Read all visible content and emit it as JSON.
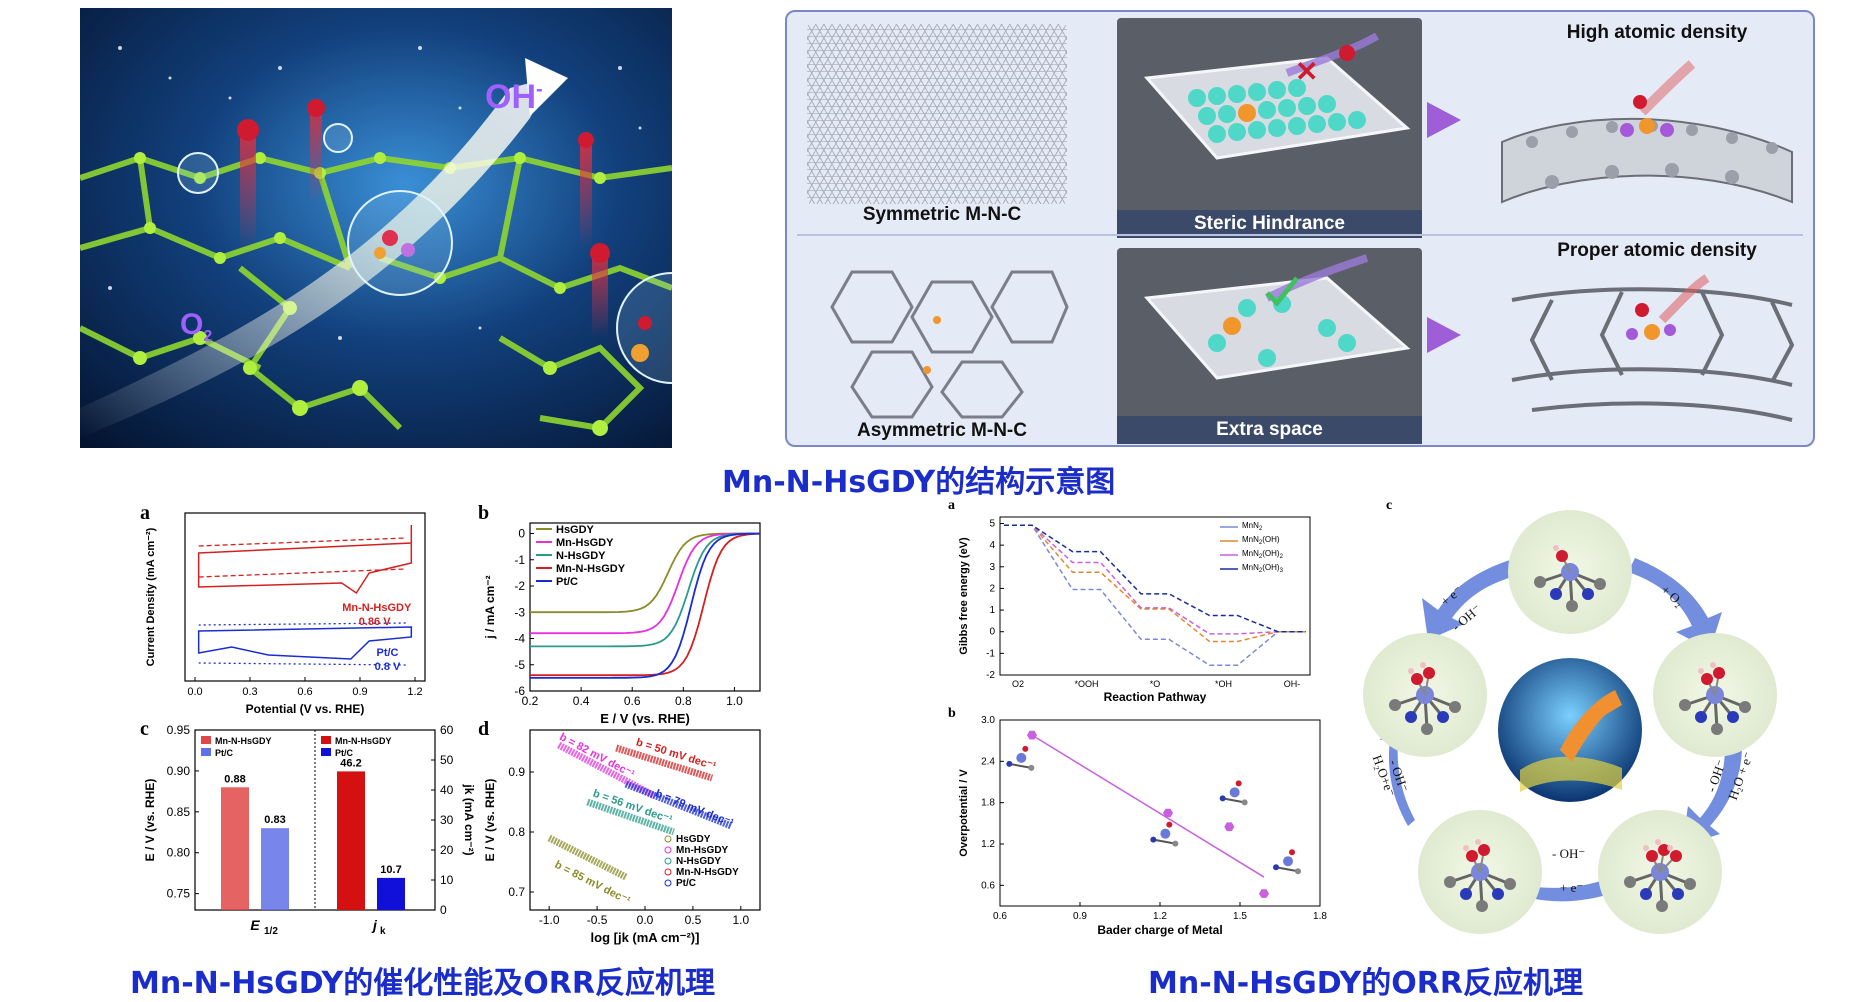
{
  "cover": {
    "oh_label": "OH",
    "oh_sup": "-",
    "o2_label": "O",
    "o2_sub": "2"
  },
  "scheme": {
    "sym_label": "Symmetric M-N-C",
    "steric_label": "Steric Hindrance",
    "high_label": "High atomic density",
    "asym_label": "Asymmetric M-N-C",
    "extra_label": "Extra space",
    "proper_label": "Proper atomic density"
  },
  "captions": {
    "structure": "Mn-N-HsGDY的结构示意图",
    "performance": "Mn-N-HsGDY的催化性能及ORR反应机理",
    "mechanism": "Mn-N-HsGDY的ORR反应机理"
  },
  "colors": {
    "caption": "#1a2cc9",
    "red": "#d42020",
    "blue": "#1a2cd0"
  },
  "chart_data": [
    {
      "id": "a",
      "type": "line",
      "xlabel": "Potential (V vs. RHE)",
      "ylabel": "Current Density (mA cm⁻²)",
      "xticks": [
        "0.0",
        "0.3",
        "0.6",
        "0.9",
        "1.2"
      ],
      "xlim": [
        0,
        1.2
      ],
      "annotations": [
        {
          "text": "Mn-N-HsGDY",
          "color": "#d42020"
        },
        {
          "text": "0.86 V",
          "color": "#d42020"
        },
        {
          "text": "Pt/C",
          "color": "#1a2cd0"
        },
        {
          "text": "0.8 V",
          "color": "#1a2cd0"
        }
      ]
    },
    {
      "id": "b",
      "type": "line",
      "xlabel": "E / V (vs. RHE)",
      "ylabel": "j / mA cm⁻²",
      "xticks": [
        "0.2",
        "0.4",
        "0.6",
        "0.8",
        "1.0"
      ],
      "yticks": [
        "0",
        "-1",
        "-2",
        "-3",
        "-4",
        "-5",
        "-6"
      ],
      "xlim": [
        0.2,
        1.1
      ],
      "ylim": [
        -6,
        0.4
      ],
      "series": [
        {
          "name": "HsGDY",
          "color": "#8b8b2a",
          "onset": 0.74,
          "limit": -3.0
        },
        {
          "name": "Mn-HsGDY",
          "color": "#e830e0",
          "onset": 0.78,
          "limit": -3.8
        },
        {
          "name": "N-HsGDY",
          "color": "#2a9a8a",
          "onset": 0.82,
          "limit": -4.3
        },
        {
          "name": "Mn-N-HsGDY",
          "color": "#d42020",
          "onset": 0.88,
          "limit": -5.4
        },
        {
          "name": "Pt/C",
          "color": "#1a2cd0",
          "onset": 0.83,
          "limit": -5.5
        }
      ]
    },
    {
      "id": "c",
      "type": "bar",
      "categories": [
        "E1/2",
        "jk"
      ],
      "ylabel_left": "E / V (vs. RHE)",
      "ylabel_right": "jk (mA cm⁻²)",
      "yticks_left": [
        "0.95",
        "0.90",
        "0.85",
        "0.80",
        "0.75"
      ],
      "yticks_right": [
        "60",
        "50",
        "40",
        "30",
        "20",
        "10",
        "0"
      ],
      "ylim_left": [
        0.73,
        0.95
      ],
      "ylim_right": [
        0,
        60
      ],
      "legend_left": [
        "Mn-N-HsGDY",
        "Pt/C"
      ],
      "legend_right": [
        "Mn-N-HsGDY",
        "Pt/C"
      ],
      "e_half": [
        {
          "name": "Mn-N-HsGDY",
          "value": 0.88,
          "label": "0.88"
        },
        {
          "name": "Pt/C",
          "value": 0.83,
          "label": "0.83"
        }
      ],
      "jk": [
        {
          "name": "Mn-N-HsGDY",
          "value": 46.2,
          "label": "46.2"
        },
        {
          "name": "Pt/C",
          "value": 10.7,
          "label": "10.7"
        }
      ],
      "xlabel_left": "E",
      "xlabel_left_sub": "1/2",
      "xlabel_right": "j",
      "xlabel_right_sub": "k"
    },
    {
      "id": "d",
      "type": "scatter",
      "xlabel": "log [jk (mA cm⁻²)]",
      "ylabel": "E / V (vs. RHE)",
      "xticks": [
        "-1.0",
        "-0.5",
        "0.0",
        "0.5",
        "1.0"
      ],
      "yticks": [
        "0.9",
        "0.8",
        "0.7"
      ],
      "xlim": [
        -1.2,
        1.2
      ],
      "ylim": [
        0.67,
        0.97
      ],
      "series": [
        {
          "name": "HsGDY",
          "color": "#8b8b2a",
          "tafel": "b = 85 mV dec⁻¹",
          "x": [
            -1.0,
            -0.2
          ],
          "y": [
            0.79,
            0.725
          ]
        },
        {
          "name": "Mn-HsGDY",
          "color": "#e830e0",
          "tafel": "b = 82 mV dec⁻¹",
          "x": [
            -0.9,
            0.1
          ],
          "y": [
            0.945,
            0.86
          ]
        },
        {
          "name": "N-HsGDY",
          "color": "#2a9a8a",
          "tafel": "b = 56 mV dec⁻¹",
          "x": [
            -0.6,
            0.3
          ],
          "y": [
            0.85,
            0.8
          ]
        },
        {
          "name": "Mn-N-HsGDY",
          "color": "#d42020",
          "tafel": "b = 50 mV dec⁻¹",
          "x": [
            -0.3,
            0.7
          ],
          "y": [
            0.94,
            0.89
          ]
        },
        {
          "name": "Pt/C",
          "color": "#1a2cd0",
          "tafel": "b = 79 mV dec⁻¹",
          "x": [
            -0.2,
            0.9
          ],
          "y": [
            0.88,
            0.81
          ]
        }
      ]
    },
    {
      "id": "mech-a",
      "type": "line",
      "xlabel": "Reaction Pathway",
      "ylabel": "Gibbs free energy (eV)",
      "categories": [
        "O2",
        "*OOH",
        "*O",
        "*OH",
        "OH-"
      ],
      "yticks": [
        "5",
        "4",
        "3",
        "2",
        "1",
        "0",
        "-1",
        "-2"
      ],
      "ylim": [
        -2,
        5
      ],
      "series": [
        {
          "name": "MnN2",
          "color": "#7a8ad8",
          "values": [
            4.92,
            1.95,
            -0.35,
            -1.55,
            0
          ]
        },
        {
          "name": "MnN2(OH)",
          "color": "#e08a30",
          "values": [
            4.92,
            2.75,
            1.05,
            -0.45,
            0
          ]
        },
        {
          "name": "MnN2(OH)2",
          "color": "#c860e0",
          "values": [
            4.92,
            3.2,
            1.1,
            -0.1,
            0
          ]
        },
        {
          "name": "MnN2(OH)3",
          "color": "#1a2c9a",
          "values": [
            4.92,
            3.7,
            1.75,
            0.75,
            0
          ]
        }
      ],
      "legend_names": [
        {
          "base": "MnN",
          "sub1": "2",
          "mid": "",
          "sub2": ""
        },
        {
          "base": "MnN",
          "sub1": "2",
          "mid": "(OH)",
          "sub2": ""
        },
        {
          "base": "MnN",
          "sub1": "2",
          "mid": "(OH)",
          "sub2": "2"
        },
        {
          "base": "MnN",
          "sub1": "2",
          "mid": "(OH)",
          "sub2": "3"
        }
      ]
    },
    {
      "id": "mech-b",
      "type": "scatter",
      "xlabel": "Bader charge of Metal",
      "ylabel": "Overpotential / V",
      "xticks": [
        "0.6",
        "0.9",
        "1.2",
        "1.5",
        "1.8"
      ],
      "yticks": [
        "3.0",
        "2.4",
        "1.8",
        "1.2",
        "0.6"
      ],
      "xlim": [
        0.6,
        1.8
      ],
      "ylim": [
        0.3,
        3.0
      ],
      "points": [
        {
          "x": 0.72,
          "y": 2.78
        },
        {
          "x": 1.23,
          "y": 1.65
        },
        {
          "x": 1.46,
          "y": 1.45
        },
        {
          "x": 1.59,
          "y": 0.48
        }
      ],
      "fit": {
        "x": [
          0.72,
          1.59
        ],
        "y": [
          2.78,
          0.72
        ]
      },
      "color": "#c860e0"
    }
  ],
  "cycle": {
    "steps": [
      "+ e⁻",
      "- OH⁻",
      "+ O₂",
      "- OH⁻",
      "H₂O + e⁻",
      "- OH⁻",
      "+ e⁻",
      "- OH⁻",
      "H₂O+e⁻"
    ]
  },
  "panel_letters": {
    "a": "a",
    "b": "b",
    "c": "c",
    "d": "d",
    "ma": "a",
    "mb": "b",
    "mc": "c"
  }
}
